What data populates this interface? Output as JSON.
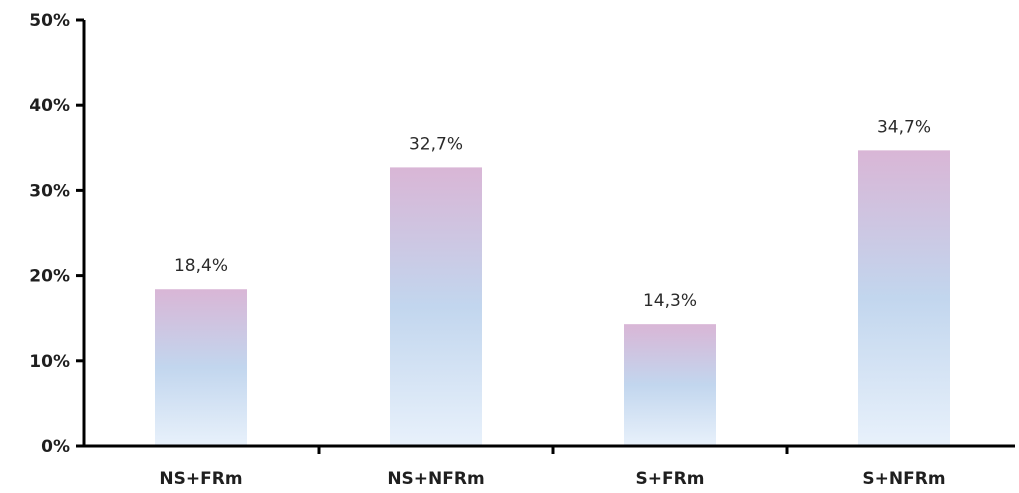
{
  "chart_data": {
    "type": "bar",
    "categories": [
      "NS+FRm",
      "NS+NFRm",
      "S+FRm",
      "S+NFRm"
    ],
    "values": [
      18.4,
      32.7,
      14.3,
      34.7
    ],
    "data_labels": [
      "18,4%",
      "32,7%",
      "14,3%",
      "34,7%"
    ],
    "ylim": [
      0,
      50
    ],
    "yticks": [
      0,
      10,
      20,
      30,
      40,
      50
    ],
    "ytick_labels": [
      "0%",
      "10%",
      "20%",
      "30%",
      "40%",
      "50%"
    ],
    "title": "",
    "xlabel": "",
    "ylabel": "",
    "grid": false,
    "legend": "none",
    "colors": {
      "bar_top": "#d9b6d6",
      "bar_mid": "#c2d6ee",
      "bar_bottom": "#e8f1fb"
    }
  }
}
